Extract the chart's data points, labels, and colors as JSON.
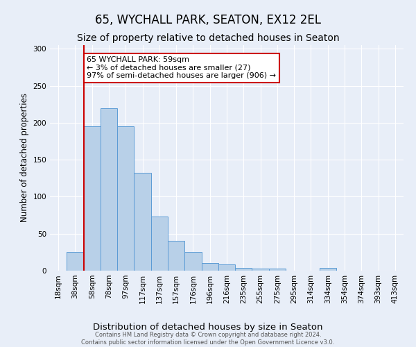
{
  "title": "65, WYCHALL PARK, SEATON, EX12 2EL",
  "subtitle": "Size of property relative to detached houses in Seaton",
  "xlabel": "Distribution of detached houses by size in Seaton",
  "ylabel": "Number of detached properties",
  "bin_labels": [
    "18sqm",
    "38sqm",
    "58sqm",
    "78sqm",
    "97sqm",
    "117sqm",
    "137sqm",
    "157sqm",
    "176sqm",
    "196sqm",
    "216sqm",
    "235sqm",
    "255sqm",
    "275sqm",
    "295sqm",
    "314sqm",
    "334sqm",
    "354sqm",
    "374sqm",
    "393sqm",
    "413sqm"
  ],
  "bar_heights": [
    0,
    25,
    195,
    220,
    195,
    132,
    73,
    40,
    25,
    10,
    8,
    4,
    3,
    3,
    0,
    0,
    4,
    0,
    0,
    0,
    0
  ],
  "bar_color": "#b8d0e8",
  "bar_edge_color": "#5b9bd5",
  "annotation_title": "65 WYCHALL PARK: 59sqm",
  "annotation_line1": "← 3% of detached houses are smaller (27)",
  "annotation_line2": "97% of semi-detached houses are larger (906) →",
  "annotation_box_color": "#ffffff",
  "annotation_box_edge": "#cc0000",
  "property_line_color": "#cc0000",
  "property_line_xbin": 2,
  "ylim": [
    0,
    305
  ],
  "yticks": [
    0,
    50,
    100,
    150,
    200,
    250,
    300
  ],
  "footer_line1": "Contains HM Land Registry data © Crown copyright and database right 2024.",
  "footer_line2": "Contains public sector information licensed under the Open Government Licence v3.0.",
  "background_color": "#e8eef8",
  "plot_bg_color": "#e8eef8",
  "title_fontsize": 12,
  "subtitle_fontsize": 10,
  "tick_fontsize": 7.5,
  "ylabel_fontsize": 8.5,
  "xlabel_fontsize": 9.5,
  "annotation_fontsize": 8,
  "footer_fontsize": 6
}
